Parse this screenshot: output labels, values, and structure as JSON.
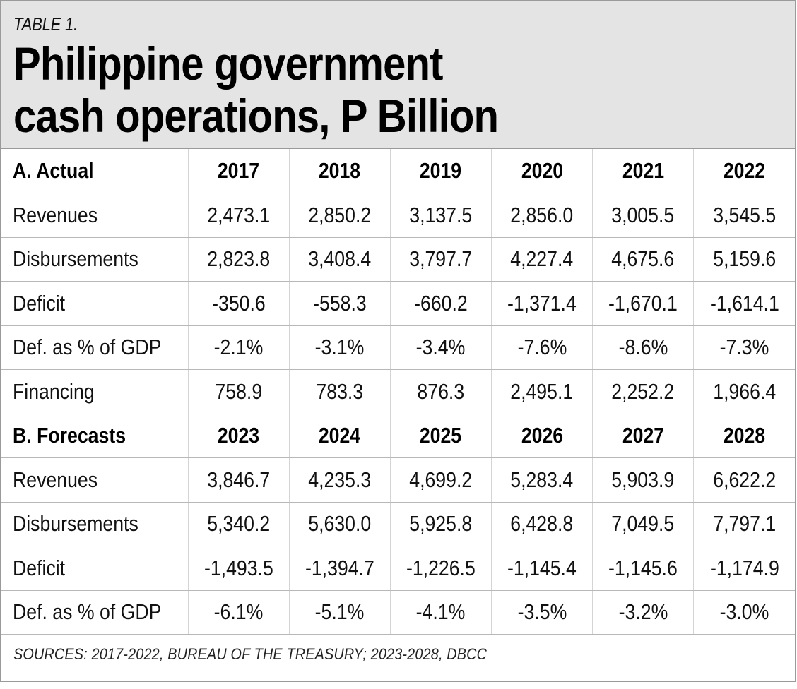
{
  "kicker": "TABLE 1.",
  "title_line1": "Philippine government",
  "title_line2": "cash operations, P Billion",
  "actual": {
    "header": [
      "A. Actual",
      "2017",
      "2018",
      "2019",
      "2020",
      "2021",
      "2022"
    ],
    "rows": [
      [
        "Revenues",
        "2,473.1",
        "2,850.2",
        "3,137.5",
        "2,856.0",
        "3,005.5",
        "3,545.5"
      ],
      [
        "Disbursements",
        "2,823.8",
        "3,408.4",
        "3,797.7",
        "4,227.4",
        "4,675.6",
        "5,159.6"
      ],
      [
        "Deficit",
        "-350.6",
        "-558.3",
        "-660.2",
        "-1,371.4",
        "-1,670.1",
        "-1,614.1"
      ],
      [
        "Def. as % of GDP",
        "-2.1%",
        "-3.1%",
        "-3.4%",
        "-7.6%",
        "-8.6%",
        "-7.3%"
      ],
      [
        "Financing",
        "758.9",
        "783.3",
        "876.3",
        "2,495.1",
        "2,252.2",
        "1,966.4"
      ]
    ]
  },
  "forecasts": {
    "header": [
      "B. Forecasts",
      "2023",
      "2024",
      "2025",
      "2026",
      "2027",
      "2028"
    ],
    "rows": [
      [
        "Revenues",
        "3,846.7",
        "4,235.3",
        "4,699.2",
        "5,283.4",
        "5,903.9",
        "6,622.2"
      ],
      [
        "Disbursements",
        "5,340.2",
        "5,630.0",
        "5,925.8",
        "6,428.8",
        "7,049.5",
        "7,797.1"
      ],
      [
        "Deficit",
        "-1,493.5",
        "-1,394.7",
        "-1,226.5",
        "-1,145.4",
        "-1,145.6",
        "-1,174.9"
      ],
      [
        "Def. as % of GDP",
        "-6.1%",
        "-5.1%",
        "-4.1%",
        "-3.5%",
        "-3.2%",
        "-3.0%"
      ]
    ]
  },
  "sources": "SOURCES: 2017-2022, BUREAU OF THE TREASURY; 2023-2028, DBCC",
  "colors": {
    "header_bg": "#e4e4e4",
    "border": "#9a9a9a",
    "text": "#111111"
  }
}
